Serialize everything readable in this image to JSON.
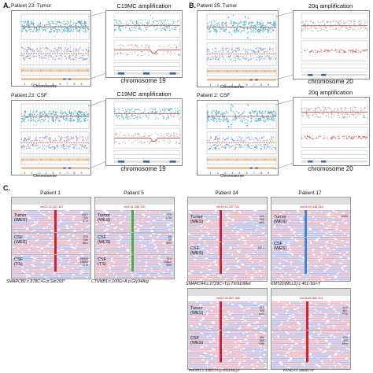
{
  "panelA": {
    "letter": "A.",
    "blocks": [
      {
        "title": "Patient 23: Tumor",
        "zoom_title": "C19MC amplification",
        "zoom_chrom": "chromosome 19",
        "axis": "Chromosome"
      },
      {
        "title": "Patient 23: CSF",
        "zoom_title": "C19MC amplification",
        "zoom_chrom": "chromosome 19",
        "axis": "Chromosome"
      }
    ]
  },
  "panelB": {
    "letter": "B.",
    "blocks": [
      {
        "title": "Patient 25: Tumor",
        "zoom_title": "20q amplification",
        "zoom_chrom": "chromosome 20",
        "axis": "Chromosome"
      },
      {
        "title": "Patient 2: CSF",
        "zoom_title": "20q amplification",
        "zoom_chrom": "chromosome 20",
        "axis": "Chromosome"
      }
    ]
  },
  "panelC": {
    "letter": "C.",
    "patients": [
      {
        "name": "Patient 1",
        "coord": "chr22:24,167,467",
        "tracks": [
          {
            "label": "Tumor\n(WES)",
            "stats": "151X\n73%\n57%"
          },
          {
            "label": "CSF\n(WES)",
            "stats": "97X\n74%\n80%"
          },
          {
            "label": "CSF\n(TS)",
            "stats": "2600X\n1859X\n71%"
          }
        ],
        "variant": "SMARCB1:c.878C>G:p.Ser293*"
      },
      {
        "name": "Patient 5",
        "coord": "chr3:41,266,100",
        "tracks": [
          {
            "label": "Tumor\n(WES)",
            "stats": "77X\n27%"
          },
          {
            "label": "CSF\n(WES)",
            "stats": "5X\n2X\n40%"
          },
          {
            "label": "CSF\n(TS)",
            "stats": "21X\n1386X\n36%"
          }
        ],
        "variant": "CTNNB1:c.100G>A:p.Gly34Arg"
      },
      {
        "name": "Patient 14",
        "coord": "chr19:11,097,741",
        "tracks": [
          {
            "label": "Tumor\n(WES)",
            "stats": "50X\n34X\n68%"
          },
          {
            "label": "CSF\n(WES)",
            "stats": "161X"
          }
        ],
        "variant": "SMARCA4:c.2729C>T:p.Thr910Met"
      },
      {
        "name": "Patient 17",
        "coord": "chr16:49,448,346",
        "tracks": [
          {
            "label": "Tumor\n(WES)",
            "stats": "200X"
          },
          {
            "label": "CSF\n(WES)",
            "stats": ""
          }
        ],
        "variant": "KMT2D(MLL2):c.401-1G>T"
      }
    ],
    "extra_coords": [
      "chr22:25,507,188",
      "chr16:89,882,201"
    ],
    "extra_rows": [
      {
        "label": "Tumor\n(WES)",
        "stats": "61X\n33X\n54%"
      },
      {
        "label": "CSF\n(WES)",
        "stats": "35X\n26X\n74%"
      }
    ],
    "extra_rows_right": [
      {
        "label": "",
        "stats": "89X\n86X\n97%"
      },
      {
        "label": "",
        "stats": "37X\n30X\n81%"
      }
    ],
    "cutoff_left": "PIK3R1:c.430G>A:p.Glu144Lys",
    "cutoff_right": "FANCA:c.4066C>T"
  },
  "colors": {
    "cnv_blue": "#43b6d9",
    "cnv_red": "#d9443a",
    "read_pink": "#e7a9b9",
    "read_blue": "#aab4e6",
    "variant_red": "#d40f1c"
  }
}
